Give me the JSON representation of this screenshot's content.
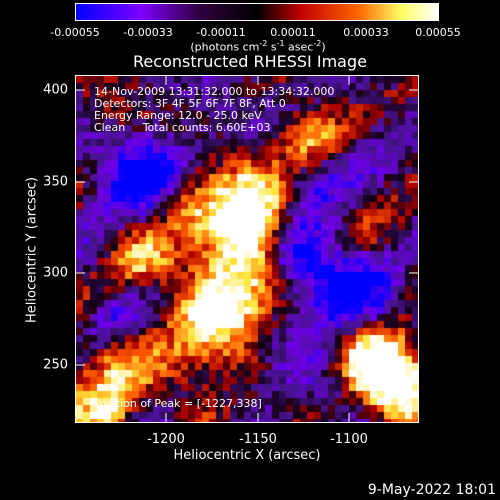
{
  "colorbar": {
    "ticks": [
      "-0.00055",
      "-0.00033",
      "-0.00011",
      "0.00011",
      "0.00033",
      "0.00055"
    ],
    "unit_prefix": "(photons cm",
    "unit_exp1": "-2",
    "unit_mid1": " s",
    "unit_exp2": "-1",
    "unit_mid2": " asec",
    "unit_exp3": "-2",
    "unit_suffix": ")",
    "colors": [
      "#0000ff",
      "#7f00ff",
      "#000000",
      "#c00000",
      "#ff6600",
      "#ffff66",
      "#ffffff"
    ]
  },
  "chart_data": {
    "type": "heatmap",
    "title": "Reconstructed RHESSI Image",
    "xlabel": "Heliocentric X (arcsec)",
    "ylabel": "Heliocentric Y (arcsec)",
    "xlim": [
      -1248,
      -1052
    ],
    "ylim": [
      219,
      411
    ],
    "x_ticks": [
      "-1200",
      "-1150",
      "-1100"
    ],
    "y_ticks": [
      "400",
      "350",
      "300",
      "250"
    ],
    "color_range": [
      -0.00055,
      0.00055
    ],
    "annotations": [
      "14-Nov-2009 13:31:32.000 to 13:34:32.000",
      "Detectors: 3F 4F 5F 6F 7F 8F, Att 0",
      "Energy Range: 12.0 - 25.0 keV",
      "Clean     Total counts: 6.60E+03"
    ],
    "peak_label": "Position of Peak = [-1227,338]",
    "peak_position": [
      -1227,
      338
    ]
  },
  "footer": {
    "date": "9-May-2022 18:01"
  }
}
